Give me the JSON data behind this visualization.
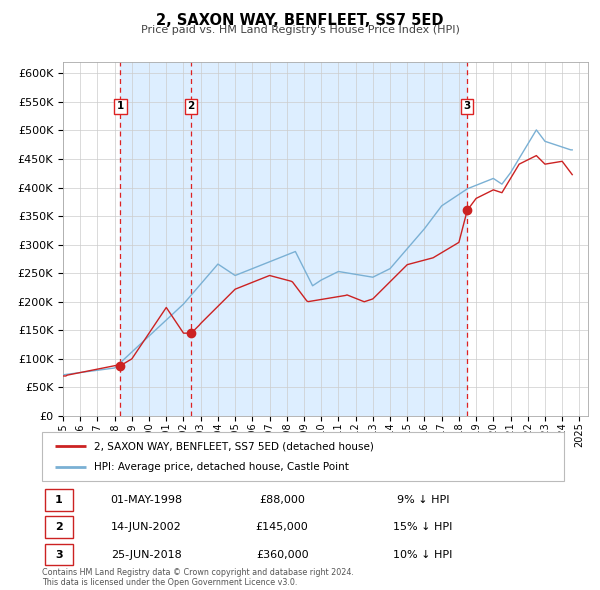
{
  "title": "2, SAXON WAY, BENFLEET, SS7 5ED",
  "subtitle": "Price paid vs. HM Land Registry's House Price Index (HPI)",
  "xlim": [
    1995.0,
    2025.5
  ],
  "ylim": [
    0,
    620000
  ],
  "yticks": [
    0,
    50000,
    100000,
    150000,
    200000,
    250000,
    300000,
    350000,
    400000,
    450000,
    500000,
    550000,
    600000
  ],
  "background_color": "#ffffff",
  "grid_color": "#cccccc",
  "shade_color": "#ddeeff",
  "hpi_color": "#7ab0d4",
  "price_color": "#cc2222",
  "sale_marker_color": "#cc2222",
  "vline_color": "#dd2222",
  "transactions": [
    {
      "id": 1,
      "year": 1998.33,
      "price": 88000,
      "date": "01-MAY-1998",
      "pct": "9%"
    },
    {
      "id": 2,
      "year": 2002.45,
      "price": 145000,
      "date": "14-JUN-2002",
      "pct": "15%"
    },
    {
      "id": 3,
      "year": 2018.48,
      "price": 360000,
      "date": "25-JUN-2018",
      "pct": "10%"
    }
  ],
  "legend_line1": "2, SAXON WAY, BENFLEET, SS7 5ED (detached house)",
  "legend_line2": "HPI: Average price, detached house, Castle Point",
  "footnote": "Contains HM Land Registry data © Crown copyright and database right 2024.\nThis data is licensed under the Open Government Licence v3.0."
}
